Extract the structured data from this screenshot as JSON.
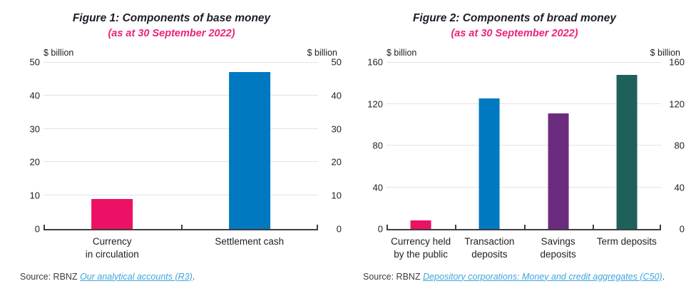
{
  "colors": {
    "title_dark": "#1d1d27",
    "subtitle_pink": "#ed2277",
    "text_dark": "#1f1f1f",
    "axis": "#3f3f3f",
    "gridline": "#e3e3e3",
    "source_text": "#3d3d3d",
    "link_blue": "#3fa4dc",
    "bar_pink": "#ec1164",
    "bar_blue": "#0079c1",
    "bar_purple": "#6b2c7f",
    "bar_teal": "#1f615a"
  },
  "figures": [
    {
      "source_prefix": "Source: RBNZ ",
      "source_link": "Our analytical accounts (R3)",
      "source_suffix": "."
    },
    {
      "source_prefix": "Source: RBNZ ",
      "source_link": "Depository corporations: Money and credit aggregates (C50)",
      "source_suffix": "."
    }
  ],
  "chart_data": [
    {
      "type": "bar",
      "title": "Figure 1: Components of base money",
      "subtitle": "(as at 30 September 2022)",
      "ylabel": "$ billion",
      "ylabel_right": "$ billion",
      "categories": [
        "Currency\nin circulation",
        "Settlement cash"
      ],
      "values": [
        9,
        47
      ],
      "bar_colors": [
        "#ec1164",
        "#0079c1"
      ],
      "ylim": [
        0,
        50
      ],
      "ytick_step": 10,
      "yticks": [
        0,
        10,
        20,
        30,
        40,
        50
      ],
      "grid": true,
      "legend": "none"
    },
    {
      "type": "bar",
      "title": "Figure 2: Components of broad money",
      "subtitle": "(as at 30 September 2022)",
      "ylabel": "$ billion",
      "ylabel_right": "$ billion",
      "categories": [
        "Currency held\nby the public",
        "Transaction\ndeposits",
        "Savings\ndeposits",
        "Term deposits"
      ],
      "values": [
        8,
        125,
        111,
        148
      ],
      "bar_colors": [
        "#ec1164",
        "#0079c1",
        "#6b2c7f",
        "#1f615a"
      ],
      "ylim": [
        0,
        160
      ],
      "ytick_step": 40,
      "yticks": [
        0,
        40,
        80,
        120,
        160
      ],
      "grid": true,
      "legend": "none"
    }
  ]
}
